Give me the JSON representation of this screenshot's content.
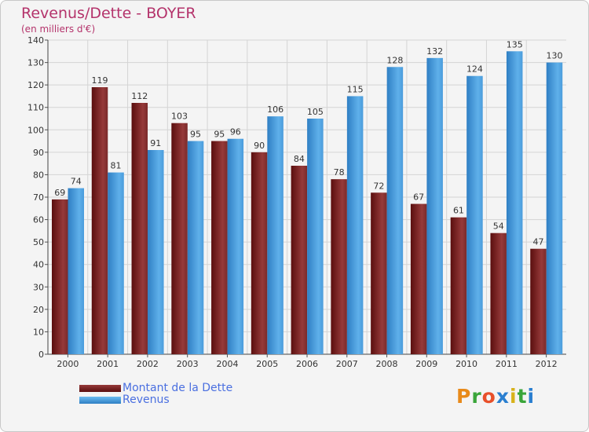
{
  "chart": {
    "title": "Revenus/Dette - BOYER",
    "subtitle": "(en milliers d'€)",
    "logo": "Proxiti"
  },
  "colors": {
    "title": "#b4336b",
    "dette_dark": "#5a0e0e",
    "dette_light": "#963a3a",
    "revenus_dark": "#2f7fc4",
    "revenus_light": "#5fb0ea",
    "legend_text": "#4a6fe0"
  },
  "chart_data": {
    "type": "bar",
    "title": "Revenus/Dette - BOYER",
    "subtitle": "(en milliers d'€)",
    "categories": [
      "2000",
      "2001",
      "2002",
      "2003",
      "2004",
      "2005",
      "2006",
      "2007",
      "2008",
      "2009",
      "2010",
      "2011",
      "2012"
    ],
    "series": [
      {
        "name": "Montant de la Dette",
        "values": [
          69,
          119,
          112,
          103,
          95,
          90,
          84,
          78,
          72,
          67,
          61,
          54,
          47
        ]
      },
      {
        "name": "Revenus",
        "values": [
          74,
          81,
          91,
          95,
          96,
          106,
          105,
          115,
          128,
          132,
          124,
          135,
          130
        ]
      }
    ],
    "ylim": [
      0,
      140
    ],
    "yticks": [
      0,
      10,
      20,
      30,
      40,
      50,
      60,
      70,
      80,
      90,
      100,
      110,
      120,
      130,
      140
    ],
    "grid": true,
    "legend_position": "bottom-left"
  }
}
